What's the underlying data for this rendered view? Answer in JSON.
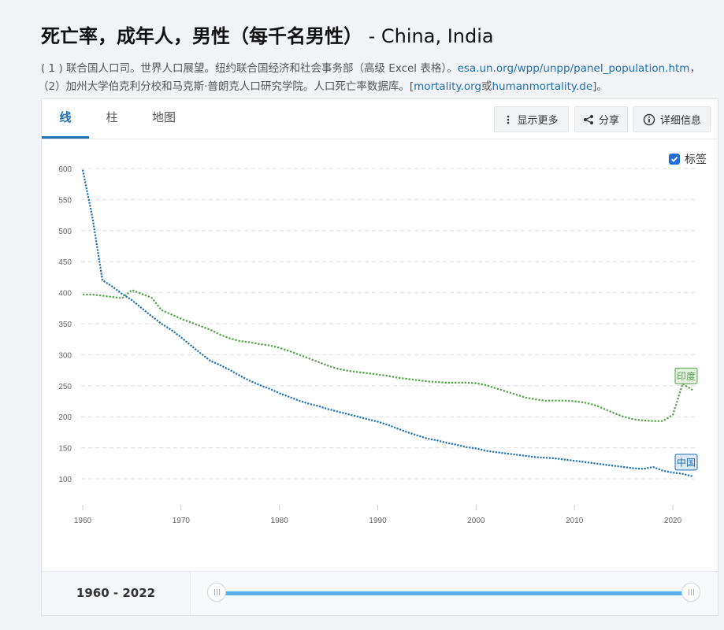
{
  "title": {
    "main": "死亡率，成年人，男性（每千名男性）",
    "countries": " - China, India"
  },
  "sources": {
    "line1_text": "( 1 ) 联合国人口司。世界人口展望。纽约联合国经济和社会事务部（高级 Excel 表格）。",
    "line1_link": "esa.un.org/wpp/unpp/panel_population.htm",
    "line1_end": "，",
    "line2_text": "（2）加州大学伯克利分校和马克斯·普朗克人口研究学院。人口死亡率数据库。[",
    "line2_link1": "mortality.org",
    "line2_mid": "或",
    "line2_link2": "humanmortality.de",
    "line2_end": "]。"
  },
  "tabs": [
    "线",
    "柱",
    "地图"
  ],
  "toolbar": {
    "more_label": "显示更多",
    "share_label": "分享",
    "details_label": "详细信息"
  },
  "labels_toggle": {
    "label": "标签",
    "checked": true
  },
  "range": {
    "label": "1960 - 2022",
    "start": 1960,
    "end": 2022
  },
  "icons": {
    "more": "vertical-dots-icon",
    "share": "share-icon",
    "details": "info-icon",
    "checkbox": "check-icon"
  },
  "chart_data": {
    "type": "line",
    "xlim": [
      1960,
      2022
    ],
    "ylim": [
      100,
      600
    ],
    "x_ticks": [
      1960,
      1970,
      1980,
      1990,
      2000,
      2010,
      2020
    ],
    "y_ticks": [
      100,
      150,
      200,
      250,
      300,
      350,
      400,
      450,
      500,
      550,
      600
    ],
    "grid": true,
    "series": [
      {
        "name": "中国",
        "color": "#1f6fb2",
        "x": [
          1960,
          1961,
          1962,
          1963,
          1964,
          1965,
          1966,
          1967,
          1968,
          1969,
          1970,
          1971,
          1972,
          1973,
          1974,
          1975,
          1976,
          1977,
          1978,
          1979,
          1980,
          1981,
          1982,
          1983,
          1984,
          1985,
          1986,
          1987,
          1988,
          1989,
          1990,
          1991,
          1992,
          1993,
          1994,
          1995,
          1996,
          1997,
          1998,
          1999,
          2000,
          2001,
          2002,
          2003,
          2004,
          2005,
          2006,
          2007,
          2008,
          2009,
          2010,
          2011,
          2012,
          2013,
          2014,
          2015,
          2016,
          2017,
          2018,
          2019,
          2020,
          2021,
          2022
        ],
        "values": [
          598,
          520,
          420,
          410,
          398,
          388,
          375,
          362,
          350,
          340,
          328,
          315,
          302,
          290,
          283,
          275,
          266,
          258,
          251,
          245,
          238,
          232,
          226,
          221,
          217,
          212,
          208,
          204,
          200,
          196,
          192,
          187,
          181,
          175,
          170,
          165,
          162,
          158,
          155,
          151,
          149,
          145,
          143,
          141,
          139,
          137,
          135,
          134,
          133,
          131,
          129,
          127,
          125,
          123,
          121,
          119,
          117,
          116,
          119,
          113,
          110,
          108,
          104
        ]
      },
      {
        "name": "印度",
        "color": "#59a14f",
        "x": [
          1960,
          1961,
          1962,
          1963,
          1964,
          1965,
          1966,
          1967,
          1968,
          1969,
          1970,
          1971,
          1972,
          1973,
          1974,
          1975,
          1976,
          1977,
          1978,
          1979,
          1980,
          1981,
          1982,
          1983,
          1984,
          1985,
          1986,
          1987,
          1988,
          1989,
          1990,
          1991,
          1992,
          1993,
          1994,
          1995,
          1996,
          1997,
          1998,
          1999,
          2000,
          2001,
          2002,
          2003,
          2004,
          2005,
          2006,
          2007,
          2008,
          2009,
          2010,
          2011,
          2012,
          2013,
          2014,
          2015,
          2016,
          2017,
          2018,
          2019,
          2020,
          2021,
          2022
        ],
        "values": [
          397,
          397,
          395,
          393,
          391,
          404,
          398,
          392,
          372,
          365,
          358,
          352,
          346,
          340,
          332,
          326,
          322,
          320,
          317,
          315,
          311,
          306,
          300,
          294,
          288,
          282,
          277,
          274,
          272,
          270,
          268,
          266,
          263,
          261,
          259,
          257,
          256,
          255,
          255,
          255,
          254,
          251,
          246,
          241,
          236,
          231,
          228,
          226,
          226,
          226,
          225,
          223,
          219,
          213,
          206,
          200,
          196,
          194,
          193,
          193,
          203,
          253,
          243
        ]
      }
    ]
  }
}
